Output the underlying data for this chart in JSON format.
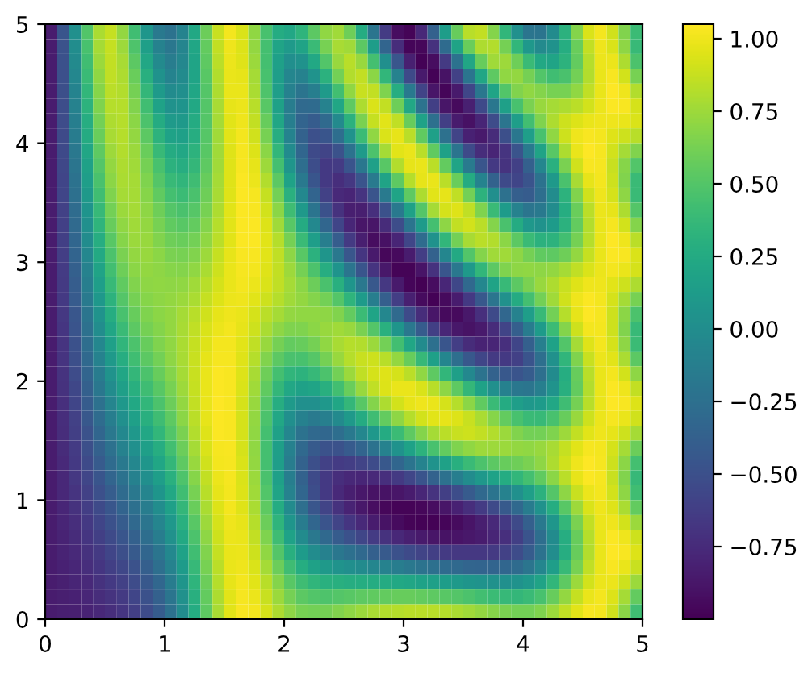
{
  "chart_data": {
    "type": "heatmap",
    "xlim": [
      0,
      5
    ],
    "ylim": [
      0,
      5
    ],
    "xticks": [
      0,
      1,
      2,
      3,
      4,
      5
    ],
    "yticks": [
      0,
      1,
      2,
      3,
      4,
      5
    ],
    "clim": [
      -1.0,
      1.05
    ],
    "cticks": [
      {
        "value": -0.75,
        "label": "−0.75"
      },
      {
        "value": -0.5,
        "label": "−0.50"
      },
      {
        "value": -0.25,
        "label": "−0.25"
      },
      {
        "value": 0,
        "label": "0.00"
      },
      {
        "value": 0.25,
        "label": "0.25"
      },
      {
        "value": 0.5,
        "label": "0.50"
      },
      {
        "value": 0.75,
        "label": "0.75"
      },
      {
        "value": 1.0,
        "label": "1.00"
      }
    ],
    "cells": [
      [
        -0.84,
        -0.46,
        0.02,
        0.49,
        0.79,
        0.87,
        0.72,
        0.42,
        0.08,
        -0.17,
        -0.23,
        -0.08,
        0.23,
        0.59,
        0.88,
        1.01,
        0.93,
        0.71,
        0.45,
        0.26,
        0.22,
        0.33,
        0.53,
        0.71,
        0.76,
        0.6,
        0.26,
        -0.2,
        -0.64,
        -0.93,
        -0.98,
        -0.77,
        -0.37,
        0.13,
        0.57,
        0.83,
        0.86,
        0.67,
        0.35,
        0.02,
        -0.2,
        -0.21,
        -0.02,
        0.31,
        0.67,
        0.93,
        1.01,
        0.9,
        0.66,
        0.4
      ],
      [
        -0.84,
        -0.48,
        0.0,
        0.45,
        0.77,
        0.87,
        0.75,
        0.48,
        0.15,
        -0.1,
        -0.19,
        -0.07,
        0.21,
        0.56,
        0.86,
        1.0,
        0.94,
        0.72,
        0.44,
        0.2,
        0.11,
        0.19,
        0.39,
        0.63,
        0.78,
        0.76,
        0.53,
        0.13,
        -0.34,
        -0.74,
        -0.97,
        -0.96,
        -0.71,
        -0.29,
        0.19,
        0.58,
        0.8,
        0.81,
        0.62,
        0.35,
        0.09,
        -0.03,
        0.04,
        0.27,
        0.58,
        0.86,
        1.0,
        0.93,
        0.7,
        0.38
      ],
      [
        -0.84,
        -0.49,
        -0.03,
        0.42,
        0.74,
        0.86,
        0.78,
        0.53,
        0.22,
        -0.03,
        -0.14,
        -0.05,
        0.2,
        0.54,
        0.84,
        0.99,
        0.95,
        0.74,
        0.44,
        0.16,
        0.01,
        0.04,
        0.23,
        0.49,
        0.73,
        0.83,
        0.73,
        0.44,
        0.01,
        -0.45,
        -0.82,
        -0.99,
        -0.93,
        -0.65,
        -0.23,
        0.21,
        0.57,
        0.76,
        0.75,
        0.6,
        0.39,
        0.23,
        0.2,
        0.32,
        0.56,
        0.82,
        0.99,
        0.99,
        0.8,
        0.47
      ],
      [
        -0.84,
        -0.5,
        -0.05,
        0.39,
        0.71,
        0.85,
        0.8,
        0.58,
        0.29,
        0.04,
        -0.08,
        -0.02,
        0.2,
        0.52,
        0.81,
        0.98,
        0.97,
        0.77,
        0.45,
        0.14,
        -0.06,
        -0.1,
        0.05,
        0.31,
        0.61,
        0.81,
        0.86,
        0.69,
        0.35,
        -0.09,
        -0.54,
        -0.86,
        -0.99,
        -0.9,
        -0.6,
        -0.2,
        0.21,
        0.54,
        0.71,
        0.72,
        0.62,
        0.49,
        0.42,
        0.46,
        0.61,
        0.81,
        0.98,
        1.03,
        0.91,
        0.63
      ],
      [
        -0.84,
        -0.51,
        -0.08,
        0.35,
        0.68,
        0.84,
        0.81,
        0.62,
        0.36,
        0.11,
        -0.02,
        0.01,
        0.21,
        0.5,
        0.8,
        0.98,
        0.98,
        0.79,
        0.48,
        0.14,
        -0.11,
        -0.21,
        -0.13,
        0.11,
        0.43,
        0.71,
        0.88,
        0.86,
        0.65,
        0.28,
        -0.17,
        -0.59,
        -0.88,
        -0.97,
        -0.86,
        -0.57,
        -0.19,
        0.2,
        0.49,
        0.66,
        0.71,
        0.67,
        0.63,
        0.63,
        0.71,
        0.85,
        0.98,
        1.05,
        1.0,
        0.81
      ],
      [
        -0.84,
        -0.52,
        -0.1,
        0.32,
        0.65,
        0.82,
        0.82,
        0.66,
        0.42,
        0.18,
        0.04,
        0.06,
        0.23,
        0.5,
        0.78,
        0.97,
        0.99,
        0.83,
        0.52,
        0.17,
        -0.14,
        -0.3,
        -0.29,
        -0.1,
        0.21,
        0.54,
        0.8,
        0.93,
        0.86,
        0.6,
        0.22,
        -0.22,
        -0.62,
        -0.88,
        -0.95,
        -0.82,
        -0.55,
        -0.19,
        0.16,
        0.45,
        0.64,
        0.73,
        0.77,
        0.8,
        0.84,
        0.91,
        0.99,
        1.04,
        1.03,
        0.92
      ],
      [
        -0.84,
        -0.53,
        -0.13,
        0.28,
        0.61,
        0.8,
        0.82,
        0.69,
        0.47,
        0.25,
        0.11,
        0.1,
        0.25,
        0.5,
        0.77,
        0.96,
        1.0,
        0.86,
        0.57,
        0.21,
        -0.13,
        -0.35,
        -0.41,
        -0.3,
        -0.03,
        0.31,
        0.64,
        0.87,
        0.96,
        0.85,
        0.57,
        0.18,
        -0.25,
        -0.62,
        -0.85,
        -0.91,
        -0.79,
        -0.53,
        -0.2,
        0.14,
        0.43,
        0.65,
        0.8,
        0.89,
        0.94,
        0.98,
        1.0,
        1.0,
        0.98,
        0.93
      ],
      [
        -0.84,
        -0.54,
        -0.15,
        0.25,
        0.58,
        0.78,
        0.82,
        0.72,
        0.53,
        0.32,
        0.18,
        0.16,
        0.28,
        0.51,
        0.76,
        0.96,
        1.01,
        0.9,
        0.63,
        0.28,
        -0.08,
        -0.36,
        -0.5,
        -0.46,
        -0.27,
        0.04,
        0.4,
        0.71,
        0.93,
        0.97,
        0.84,
        0.55,
        0.16,
        -0.24,
        -0.59,
        -0.81,
        -0.86,
        -0.75,
        -0.51,
        -0.19,
        0.14,
        0.45,
        0.71,
        0.89,
        1.0,
        1.03,
        1.01,
        0.95,
        0.89,
        0.83
      ],
      [
        -0.84,
        -0.55,
        -0.18,
        0.21,
        0.54,
        0.75,
        0.81,
        0.74,
        0.58,
        0.38,
        0.25,
        0.22,
        0.32,
        0.52,
        0.76,
        0.95,
        1.02,
        0.94,
        0.69,
        0.35,
        -0.02,
        -0.33,
        -0.54,
        -0.59,
        -0.48,
        -0.23,
        0.11,
        0.47,
        0.77,
        0.96,
        0.98,
        0.84,
        0.55,
        0.17,
        -0.21,
        -0.54,
        -0.74,
        -0.79,
        -0.69,
        -0.47,
        -0.16,
        0.19,
        0.52,
        0.8,
        0.98,
        1.05,
        1.02,
        0.91,
        0.77,
        0.66
      ],
      [
        -0.84,
        -0.56,
        -0.2,
        0.17,
        0.5,
        0.72,
        0.8,
        0.76,
        0.62,
        0.45,
        0.31,
        0.28,
        0.36,
        0.54,
        0.76,
        0.95,
        1.03,
        0.97,
        0.75,
        0.44,
        0.07,
        -0.27,
        -0.52,
        -0.66,
        -0.64,
        -0.47,
        -0.19,
        0.16,
        0.52,
        0.81,
        0.97,
        0.98,
        0.84,
        0.56,
        0.2,
        -0.16,
        -0.46,
        -0.66,
        -0.7,
        -0.61,
        -0.38,
        -0.06,
        0.3,
        0.64,
        0.9,
        1.03,
        1.02,
        0.88,
        0.68,
        0.49
      ],
      [
        -0.84,
        -0.58,
        -0.23,
        0.14,
        0.46,
        0.69,
        0.79,
        0.77,
        0.65,
        0.5,
        0.38,
        0.34,
        0.41,
        0.57,
        0.77,
        0.95,
        1.04,
        0.99,
        0.81,
        0.53,
        0.18,
        -0.17,
        -0.46,
        -0.66,
        -0.73,
        -0.67,
        -0.47,
        -0.16,
        0.19,
        0.54,
        0.82,
        0.97,
        0.98,
        0.84,
        0.58,
        0.25,
        -0.08,
        -0.36,
        -0.54,
        -0.58,
        -0.47,
        -0.23,
        0.1,
        0.46,
        0.78,
        0.97,
        1.01,
        0.89,
        0.66,
        0.39
      ],
      [
        -0.84,
        -0.58,
        -0.25,
        0.1,
        0.42,
        0.65,
        0.77,
        0.77,
        0.68,
        0.55,
        0.44,
        0.4,
        0.46,
        0.6,
        0.78,
        0.95,
        1.04,
        1.02,
        0.87,
        0.61,
        0.3,
        -0.04,
        -0.35,
        -0.6,
        -0.76,
        -0.79,
        -0.69,
        -0.47,
        -0.16,
        0.2,
        0.54,
        0.8,
        0.96,
        0.97,
        0.85,
        0.61,
        0.32,
        0.01,
        -0.24,
        -0.39,
        -0.41,
        -0.27,
        -0.01,
        0.32,
        0.66,
        0.9,
        1.0,
        0.92,
        0.7,
        0.39
      ],
      [
        -0.84,
        -0.6,
        -0.28,
        0.06,
        0.37,
        0.61,
        0.74,
        0.77,
        0.7,
        0.6,
        0.5,
        0.46,
        0.51,
        0.63,
        0.8,
        0.96,
        1.04,
        1.03,
        0.91,
        0.69,
        0.41,
        0.1,
        -0.21,
        -0.49,
        -0.71,
        -0.83,
        -0.83,
        -0.72,
        -0.49,
        -0.17,
        0.17,
        0.5,
        0.77,
        0.92,
        0.95,
        0.85,
        0.65,
        0.39,
        0.12,
        -0.09,
        -0.2,
        -0.17,
        -0.01,
        0.27,
        0.58,
        0.84,
        0.99,
        0.97,
        0.8,
        0.5
      ],
      [
        -0.84,
        -0.61,
        -0.3,
        0.02,
        0.33,
        0.57,
        0.71,
        0.76,
        0.72,
        0.63,
        0.55,
        0.52,
        0.56,
        0.67,
        0.82,
        0.96,
        1.04,
        1.04,
        0.94,
        0.76,
        0.52,
        0.25,
        -0.04,
        -0.33,
        -0.58,
        -0.78,
        -0.88,
        -0.88,
        -0.75,
        -0.52,
        -0.21,
        0.12,
        0.44,
        0.7,
        0.86,
        0.91,
        0.84,
        0.67,
        0.46,
        0.25,
        0.09,
        0.04,
        0.12,
        0.31,
        0.56,
        0.81,
        0.98,
        1.02,
        0.91,
        0.67
      ],
      [
        -0.84,
        -0.62,
        -0.33,
        -0.01,
        0.28,
        0.52,
        0.68,
        0.74,
        0.73,
        0.66,
        0.6,
        0.58,
        0.61,
        0.71,
        0.84,
        0.96,
        1.04,
        1.04,
        0.96,
        0.82,
        0.62,
        0.39,
        0.14,
        -0.13,
        -0.4,
        -0.65,
        -0.83,
        -0.93,
        -0.91,
        -0.79,
        -0.57,
        -0.28,
        0.04,
        0.35,
        0.61,
        0.78,
        0.84,
        0.81,
        0.69,
        0.53,
        0.39,
        0.31,
        0.32,
        0.43,
        0.62,
        0.82,
        0.98,
        1.05,
        1.0,
        0.84
      ],
      [
        -0.84,
        -0.63,
        -0.35,
        -0.05,
        0.24,
        0.47,
        0.64,
        0.72,
        0.73,
        0.69,
        0.64,
        0.63,
        0.66,
        0.75,
        0.87,
        0.97,
        1.03,
        1.03,
        0.96,
        0.85,
        0.7,
        0.52,
        0.31,
        0.07,
        -0.18,
        -0.45,
        -0.68,
        -0.86,
        -0.96,
        -0.95,
        -0.84,
        -0.63,
        -0.36,
        -0.06,
        0.24,
        0.49,
        0.67,
        0.76,
        0.76,
        0.7,
        0.62,
        0.55,
        0.54,
        0.6,
        0.72,
        0.87,
        0.98,
        1.04,
        1.03,
        0.93
      ],
      [
        -0.84,
        -0.64,
        -0.38,
        -0.09,
        0.19,
        0.43,
        0.6,
        0.69,
        0.72,
        0.7,
        0.68,
        0.67,
        0.71,
        0.79,
        0.89,
        0.98,
        1.02,
        1.01,
        0.95,
        0.86,
        0.75,
        0.62,
        0.47,
        0.28,
        0.06,
        -0.2,
        -0.46,
        -0.69,
        -0.87,
        -0.98,
        -0.98,
        -0.89,
        -0.71,
        -0.46,
        -0.18,
        0.1,
        0.35,
        0.53,
        0.65,
        0.7,
        0.71,
        0.7,
        0.72,
        0.77,
        0.85,
        0.93,
        0.99,
        1.01,
        0.98,
        0.92
      ],
      [
        -0.84,
        -0.65,
        -0.4,
        -0.13,
        0.14,
        0.38,
        0.55,
        0.66,
        0.7,
        0.71,
        0.7,
        0.71,
        0.76,
        0.83,
        0.92,
        0.98,
        1.01,
        0.99,
        0.93,
        0.85,
        0.77,
        0.69,
        0.59,
        0.46,
        0.29,
        0.07,
        -0.18,
        -0.44,
        -0.67,
        -0.86,
        -0.97,
        -1.0,
        -0.93,
        -0.78,
        -0.56,
        -0.31,
        -0.05,
        0.19,
        0.38,
        0.53,
        0.64,
        0.73,
        0.8,
        0.88,
        0.95,
        1.0,
        1.0,
        0.96,
        0.89,
        0.8
      ],
      [
        -0.84,
        -0.66,
        -0.42,
        -0.16,
        0.09,
        0.32,
        0.5,
        0.62,
        0.68,
        0.7,
        0.72,
        0.74,
        0.79,
        0.87,
        0.94,
        0.99,
        1.0,
        0.96,
        0.89,
        0.82,
        0.76,
        0.72,
        0.67,
        0.61,
        0.5,
        0.33,
        0.12,
        -0.13,
        -0.39,
        -0.63,
        -0.82,
        -0.94,
        -0.99,
        -0.95,
        -0.84,
        -0.66,
        -0.44,
        -0.2,
        0.03,
        0.25,
        0.44,
        0.61,
        0.76,
        0.9,
        1.0,
        1.04,
        1.01,
        0.92,
        0.77,
        0.63
      ],
      [
        -0.84,
        -0.67,
        -0.45,
        -0.2,
        0.05,
        0.27,
        0.45,
        0.57,
        0.65,
        0.69,
        0.72,
        0.77,
        0.83,
        0.9,
        0.97,
        1.0,
        0.98,
        0.92,
        0.84,
        0.77,
        0.72,
        0.71,
        0.71,
        0.7,
        0.66,
        0.56,
        0.4,
        0.2,
        -0.05,
        -0.3,
        -0.54,
        -0.74,
        -0.88,
        -0.95,
        -0.95,
        -0.87,
        -0.72,
        -0.54,
        -0.32,
        -0.09,
        0.14,
        0.38,
        0.61,
        0.82,
        0.97,
        1.05,
        1.02,
        0.89,
        0.69,
        0.47
      ],
      [
        -0.84,
        -0.68,
        -0.47,
        -0.24,
        0.0,
        0.21,
        0.39,
        0.53,
        0.62,
        0.67,
        0.72,
        0.78,
        0.85,
        0.93,
        0.99,
        1.01,
        0.97,
        0.89,
        0.79,
        0.7,
        0.65,
        0.65,
        0.69,
        0.73,
        0.76,
        0.73,
        0.64,
        0.5,
        0.3,
        0.07,
        -0.18,
        -0.41,
        -0.62,
        -0.78,
        -0.87,
        -0.9,
        -0.86,
        -0.75,
        -0.59,
        -0.39,
        -0.15,
        0.12,
        0.4,
        0.67,
        0.89,
        1.01,
        1.01,
        0.89,
        0.66,
        0.38
      ],
      [
        -0.84,
        -0.69,
        -0.49,
        -0.27,
        -0.05,
        0.16,
        0.34,
        0.47,
        0.57,
        0.65,
        0.71,
        0.79,
        0.87,
        0.95,
        1.01,
        1.01,
        0.96,
        0.85,
        0.73,
        0.62,
        0.56,
        0.57,
        0.62,
        0.71,
        0.78,
        0.82,
        0.81,
        0.74,
        0.61,
        0.43,
        0.21,
        -0.02,
        -0.25,
        -0.46,
        -0.63,
        -0.75,
        -0.8,
        -0.79,
        -0.72,
        -0.58,
        -0.38,
        -0.12,
        0.18,
        0.49,
        0.77,
        0.95,
        1.01,
        0.92,
        0.7,
        0.4
      ],
      [
        -0.84,
        -0.69,
        -0.51,
        -0.31,
        -0.1,
        0.1,
        0.28,
        0.42,
        0.53,
        0.61,
        0.7,
        0.78,
        0.88,
        0.97,
        1.02,
        1.02,
        0.95,
        0.82,
        0.66,
        0.53,
        0.46,
        0.45,
        0.51,
        0.62,
        0.73,
        0.82,
        0.88,
        0.89,
        0.83,
        0.72,
        0.57,
        0.37,
        0.16,
        -0.06,
        -0.26,
        -0.44,
        -0.57,
        -0.65,
        -0.66,
        -0.61,
        -0.47,
        -0.26,
        0.03,
        0.34,
        0.65,
        0.88,
        0.99,
        0.96,
        0.79,
        0.53
      ],
      [
        -0.84,
        -0.7,
        -0.53,
        -0.34,
        -0.15,
        0.05,
        0.21,
        0.36,
        0.47,
        0.57,
        0.67,
        0.77,
        0.88,
        0.98,
        1.04,
        1.03,
        0.94,
        0.78,
        0.6,
        0.44,
        0.34,
        0.32,
        0.37,
        0.47,
        0.61,
        0.74,
        0.85,
        0.92,
        0.95,
        0.92,
        0.84,
        0.71,
        0.54,
        0.35,
        0.15,
        -0.04,
        -0.22,
        -0.36,
        -0.44,
        -0.47,
        -0.41,
        -0.26,
        -0.02,
        0.27,
        0.57,
        0.83,
        0.98,
        1.01,
        0.91,
        0.7
      ],
      [
        -0.84,
        -0.71,
        -0.56,
        -0.38,
        -0.19,
        -0.01,
        0.15,
        0.29,
        0.41,
        0.52,
        0.63,
        0.75,
        0.87,
        0.98,
        1.04,
        1.03,
        0.93,
        0.76,
        0.55,
        0.36,
        0.22,
        0.17,
        0.2,
        0.29,
        0.43,
        0.58,
        0.73,
        0.85,
        0.94,
        0.98,
        0.98,
        0.93,
        0.83,
        0.7,
        0.54,
        0.36,
        0.18,
        0.02,
        -0.11,
        -0.19,
        -0.2,
        -0.12,
        0.05,
        0.29,
        0.56,
        0.81,
        0.98,
        1.04,
        1.0,
        0.86
      ],
      [
        -0.84,
        -0.72,
        -0.58,
        -0.41,
        -0.24,
        -0.07,
        0.09,
        0.23,
        0.35,
        0.47,
        0.59,
        0.72,
        0.86,
        0.98,
        1.05,
        1.03,
        0.92,
        0.73,
        0.5,
        0.28,
        0.11,
        0.02,
        0.02,
        0.09,
        0.21,
        0.36,
        0.52,
        0.67,
        0.8,
        0.91,
        0.97,
        1.0,
        0.98,
        0.92,
        0.82,
        0.69,
        0.55,
        0.39,
        0.25,
        0.14,
        0.09,
        0.12,
        0.22,
        0.41,
        0.62,
        0.83,
        0.98,
        1.05,
        1.03,
        0.94
      ],
      [
        -0.84,
        -0.73,
        -0.6,
        -0.44,
        -0.28,
        -0.13,
        0.02,
        0.16,
        0.29,
        0.41,
        0.54,
        0.69,
        0.84,
        0.97,
        1.04,
        1.03,
        0.92,
        0.72,
        0.47,
        0.22,
        0.01,
        -0.11,
        -0.16,
        -0.12,
        -0.03,
        0.1,
        0.25,
        0.41,
        0.56,
        0.7,
        0.82,
        0.91,
        0.96,
        0.97,
        0.94,
        0.88,
        0.79,
        0.68,
        0.56,
        0.45,
        0.39,
        0.38,
        0.45,
        0.57,
        0.73,
        0.89,
        0.99,
        1.02,
        0.98,
        0.9
      ],
      [
        -0.84,
        -0.74,
        -0.62,
        -0.48,
        -0.33,
        -0.18,
        -0.04,
        0.09,
        0.22,
        0.35,
        0.49,
        0.64,
        0.81,
        0.95,
        1.04,
        1.03,
        0.92,
        0.71,
        0.44,
        0.17,
        -0.06,
        -0.23,
        -0.31,
        -0.32,
        -0.27,
        -0.17,
        -0.05,
        0.09,
        0.25,
        0.4,
        0.54,
        0.67,
        0.77,
        0.84,
        0.88,
        0.89,
        0.86,
        0.81,
        0.74,
        0.66,
        0.61,
        0.61,
        0.65,
        0.75,
        0.86,
        0.96,
        1.0,
        0.97,
        0.89,
        0.77
      ],
      [
        -0.84,
        -0.75,
        -0.64,
        -0.51,
        -0.37,
        -0.24,
        -0.1,
        0.02,
        0.15,
        0.28,
        0.43,
        0.59,
        0.77,
        0.93,
        1.02,
        1.03,
        0.92,
        0.71,
        0.44,
        0.15,
        -0.11,
        -0.31,
        -0.43,
        -0.48,
        -0.48,
        -0.42,
        -0.34,
        -0.23,
        -0.1,
        0.04,
        0.18,
        0.32,
        0.45,
        0.56,
        0.65,
        0.71,
        0.75,
        0.75,
        0.74,
        0.72,
        0.71,
        0.73,
        0.78,
        0.87,
        0.96,
        1.02,
        1.01,
        0.92,
        0.77,
        0.59
      ],
      [
        -0.84,
        -0.76,
        -0.66,
        -0.54,
        -0.42,
        -0.29,
        -0.17,
        -0.05,
        0.08,
        0.21,
        0.36,
        0.54,
        0.73,
        0.9,
        1.01,
        1.02,
        0.93,
        0.72,
        0.44,
        0.14,
        -0.14,
        -0.36,
        -0.51,
        -0.6,
        -0.64,
        -0.63,
        -0.59,
        -0.53,
        -0.44,
        -0.33,
        -0.21,
        -0.08,
        0.05,
        0.17,
        0.29,
        0.39,
        0.47,
        0.53,
        0.57,
        0.6,
        0.64,
        0.7,
        0.8,
        0.9,
        1.0,
        1.05,
        1.02,
        0.89,
        0.69,
        0.44
      ],
      [
        -0.84,
        -0.77,
        -0.67,
        -0.57,
        -0.46,
        -0.34,
        -0.23,
        -0.11,
        0.01,
        0.14,
        0.3,
        0.48,
        0.68,
        0.86,
        0.99,
        1.02,
        0.93,
        0.74,
        0.46,
        0.16,
        -0.13,
        -0.36,
        -0.54,
        -0.66,
        -0.73,
        -0.77,
        -0.78,
        -0.76,
        -0.72,
        -0.65,
        -0.57,
        -0.47,
        -0.36,
        -0.24,
        -0.13,
        -0.01,
        0.09,
        0.18,
        0.26,
        0.35,
        0.44,
        0.55,
        0.69,
        0.84,
        0.97,
        1.04,
        1.02,
        0.88,
        0.66,
        0.37
      ],
      [
        -0.84,
        -0.77,
        -0.69,
        -0.6,
        -0.5,
        -0.4,
        -0.29,
        -0.18,
        -0.07,
        0.07,
        0.23,
        0.42,
        0.63,
        0.83,
        0.97,
        1.01,
        0.94,
        0.76,
        0.49,
        0.2,
        -0.09,
        -0.33,
        -0.52,
        -0.66,
        -0.76,
        -0.83,
        -0.87,
        -0.9,
        -0.9,
        -0.88,
        -0.84,
        -0.78,
        -0.7,
        -0.62,
        -0.52,
        -0.42,
        -0.31,
        -0.21,
        -0.1,
        0.02,
        0.15,
        0.31,
        0.5,
        0.7,
        0.88,
        0.99,
        1.01,
        0.91,
        0.7,
        0.42
      ],
      [
        -0.84,
        -0.78,
        -0.71,
        -0.63,
        -0.54,
        -0.45,
        -0.35,
        -0.25,
        -0.14,
        0.0,
        0.16,
        0.36,
        0.58,
        0.79,
        0.94,
        1.01,
        0.95,
        0.79,
        0.54,
        0.26,
        -0.02,
        -0.26,
        -0.45,
        -0.59,
        -0.71,
        -0.8,
        -0.87,
        -0.92,
        -0.96,
        -0.98,
        -0.98,
        -0.96,
        -0.93,
        -0.88,
        -0.81,
        -0.73,
        -0.64,
        -0.54,
        -0.43,
        -0.31,
        -0.15,
        0.04,
        0.27,
        0.52,
        0.75,
        0.93,
        1.0,
        0.95,
        0.79,
        0.56
      ],
      [
        -0.84,
        -0.79,
        -0.73,
        -0.66,
        -0.58,
        -0.49,
        -0.41,
        -0.31,
        -0.2,
        -0.07,
        0.09,
        0.3,
        0.52,
        0.75,
        0.92,
        1.0,
        0.97,
        0.82,
        0.59,
        0.33,
        0.07,
        -0.15,
        -0.33,
        -0.47,
        -0.59,
        -0.68,
        -0.76,
        -0.84,
        -0.9,
        -0.94,
        -0.98,
        -0.99,
        -0.99,
        -0.97,
        -0.94,
        -0.89,
        -0.83,
        -0.76,
        -0.66,
        -0.54,
        -0.38,
        -0.17,
        0.08,
        0.36,
        0.64,
        0.86,
        0.99,
        1.0,
        0.91,
        0.74
      ],
      [
        -0.84,
        -0.8,
        -0.75,
        -0.68,
        -0.62,
        -0.54,
        -0.46,
        -0.37,
        -0.27,
        -0.14,
        0.03,
        0.24,
        0.47,
        0.7,
        0.89,
        0.99,
        0.98,
        0.86,
        0.65,
        0.41,
        0.18,
        -0.02,
        -0.18,
        -0.31,
        -0.41,
        -0.49,
        -0.57,
        -0.64,
        -0.71,
        -0.77,
        -0.82,
        -0.86,
        -0.88,
        -0.9,
        -0.89,
        -0.87,
        -0.84,
        -0.79,
        -0.72,
        -0.62,
        -0.47,
        -0.27,
        -0.02,
        0.28,
        0.57,
        0.82,
        0.98,
        1.04,
        1.0,
        0.89
      ],
      [
        -0.84,
        -0.8,
        -0.76,
        -0.71,
        -0.65,
        -0.58,
        -0.51,
        -0.43,
        -0.33,
        -0.2,
        -0.04,
        0.18,
        0.42,
        0.66,
        0.87,
        0.98,
        0.99,
        0.89,
        0.71,
        0.5,
        0.29,
        0.12,
        -0.01,
        -0.11,
        -0.19,
        -0.25,
        -0.31,
        -0.38,
        -0.43,
        -0.49,
        -0.54,
        -0.59,
        -0.62,
        -0.65,
        -0.67,
        -0.67,
        -0.67,
        -0.65,
        -0.6,
        -0.53,
        -0.41,
        -0.23,
        0.0,
        0.28,
        0.57,
        0.81,
        0.98,
        1.05,
        1.03,
        0.94
      ],
      [
        -0.84,
        -0.81,
        -0.78,
        -0.73,
        -0.68,
        -0.62,
        -0.56,
        -0.48,
        -0.39,
        -0.26,
        -0.09,
        0.12,
        0.37,
        0.63,
        0.84,
        0.98,
        1.0,
        0.93,
        0.77,
        0.59,
        0.41,
        0.27,
        0.17,
        0.1,
        0.05,
        0.01,
        -0.02,
        -0.06,
        -0.1,
        -0.14,
        -0.18,
        -0.22,
        -0.25,
        -0.29,
        -0.31,
        -0.34,
        -0.35,
        -0.35,
        -0.33,
        -0.29,
        -0.2,
        -0.06,
        0.14,
        0.38,
        0.63,
        0.85,
        0.98,
        1.03,
        0.98,
        0.88
      ],
      [
        -0.84,
        -0.82,
        -0.79,
        -0.76,
        -0.71,
        -0.66,
        -0.6,
        -0.53,
        -0.44,
        -0.32,
        -0.15,
        0.07,
        0.33,
        0.59,
        0.82,
        0.97,
        1.01,
        0.96,
        0.83,
        0.67,
        0.52,
        0.41,
        0.34,
        0.3,
        0.29,
        0.28,
        0.27,
        0.26,
        0.25,
        0.23,
        0.21,
        0.18,
        0.16,
        0.13,
        0.1,
        0.07,
        0.05,
        0.03,
        0.02,
        0.04,
        0.09,
        0.19,
        0.35,
        0.54,
        0.74,
        0.91,
        0.99,
        0.99,
        0.89,
        0.74
      ],
      [
        -0.84,
        -0.83,
        -0.81,
        -0.78,
        -0.74,
        -0.7,
        -0.65,
        -0.58,
        -0.49,
        -0.37,
        -0.2,
        0.03,
        0.29,
        0.56,
        0.8,
        0.96,
        1.02,
        0.99,
        0.88,
        0.74,
        0.62,
        0.53,
        0.49,
        0.48,
        0.5,
        0.52,
        0.54,
        0.55,
        0.56,
        0.57,
        0.57,
        0.56,
        0.54,
        0.52,
        0.5,
        0.47,
        0.43,
        0.4,
        0.37,
        0.36,
        0.39,
        0.45,
        0.57,
        0.72,
        0.87,
        0.98,
        1.01,
        0.94,
        0.77,
        0.56
      ],
      [
        -0.84,
        -0.83,
        -0.82,
        -0.8,
        -0.77,
        -0.73,
        -0.68,
        -0.62,
        -0.53,
        -0.41,
        -0.24,
        -0.01,
        0.26,
        0.54,
        0.78,
        0.96,
        1.03,
        1.01,
        0.92,
        0.8,
        0.7,
        0.63,
        0.61,
        0.62,
        0.66,
        0.7,
        0.74,
        0.78,
        0.81,
        0.82,
        0.84,
        0.84,
        0.83,
        0.82,
        0.79,
        0.76,
        0.72,
        0.68,
        0.64,
        0.61,
        0.61,
        0.65,
        0.74,
        0.85,
        0.96,
        1.03,
        1.01,
        0.9,
        0.69,
        0.42
      ]
    ]
  }
}
